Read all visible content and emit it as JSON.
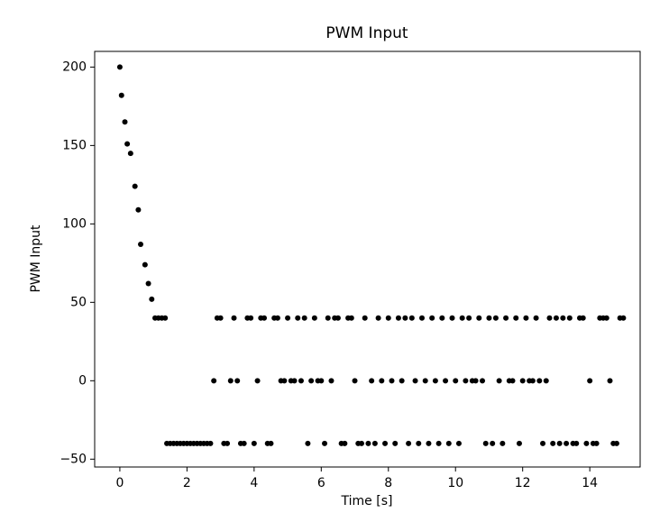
{
  "chart_data": {
    "type": "scatter",
    "title": "PWM Input",
    "x_label": "Time [s]",
    "y_label": "PWM Input",
    "series": [
      {
        "color": "#000000",
        "x": [
          0,
          0.05,
          0.15,
          0.22,
          0.32,
          0.45,
          0.55,
          0.62,
          0.75,
          0.85,
          0.95,
          1.05,
          1.15,
          1.25,
          1.35,
          1.4,
          1.5,
          1.6,
          1.7,
          1.8,
          1.9,
          2.0,
          2.1,
          2.2,
          2.3,
          2.4,
          2.5,
          2.6,
          2.7,
          2.8,
          2.9,
          3.0,
          3.1,
          3.2,
          3.3,
          3.4,
          3.5,
          3.6,
          3.7,
          3.8,
          3.9,
          4.0,
          4.1,
          4.2,
          4.3,
          4.4,
          4.5,
          4.6,
          4.7,
          4.8,
          4.9,
          5.0,
          5.1,
          5.2,
          5.3,
          5.4,
          5.5,
          5.6,
          5.7,
          5.8,
          5.9,
          6.0,
          6.1,
          6.2,
          6.3,
          6.4,
          6.5,
          6.6,
          6.7,
          6.8,
          6.9,
          7.0,
          7.1,
          7.2,
          7.3,
          7.4,
          7.5,
          7.6,
          7.7,
          7.8,
          7.9,
          8.0,
          8.1,
          8.2,
          8.3,
          8.4,
          8.5,
          8.6,
          8.7,
          8.8,
          8.9,
          9.0,
          9.1,
          9.2,
          9.3,
          9.4,
          9.5,
          9.6,
          9.7,
          9.8,
          9.9,
          10.0,
          10.1,
          10.2,
          10.3,
          10.4,
          10.5,
          10.6,
          10.7,
          10.8,
          10.9,
          11.0,
          11.1,
          11.2,
          11.3,
          11.4,
          11.5,
          11.6,
          11.7,
          11.8,
          11.9,
          12.0,
          12.1,
          12.2,
          12.3,
          12.4,
          12.5,
          12.6,
          12.7,
          12.8,
          12.9,
          13.0,
          13.1,
          13.2,
          13.3,
          13.4,
          13.5,
          13.6,
          13.7,
          13.8,
          13.9,
          14.0,
          14.1,
          14.2,
          14.3,
          14.4,
          14.5,
          14.6,
          14.7,
          14.8,
          14.9,
          15.0
        ],
        "values": [
          200,
          182,
          165,
          151,
          145,
          124,
          109,
          87,
          74,
          62,
          52,
          40,
          40,
          40,
          40,
          -40,
          -40,
          -40,
          -40,
          -40,
          -40,
          -40,
          -40,
          -40,
          -40,
          -40,
          -40,
          -40,
          -40,
          0,
          40,
          40,
          -40,
          -40,
          0,
          40,
          0,
          -40,
          -40,
          40,
          40,
          -40,
          0,
          40,
          40,
          -40,
          -40,
          40,
          40,
          0,
          0,
          40,
          0,
          0,
          40,
          0,
          40,
          -40,
          0,
          40,
          0,
          0,
          -40,
          40,
          0,
          40,
          40,
          -40,
          -40,
          40,
          40,
          0,
          -40,
          -40,
          40,
          -40,
          0,
          -40,
          40,
          0,
          -40,
          40,
          0,
          -40,
          40,
          0,
          40,
          -40,
          40,
          0,
          -40,
          40,
          0,
          -40,
          40,
          0,
          -40,
          40,
          0,
          -40,
          40,
          0,
          -40,
          40,
          0,
          40,
          0,
          0,
          40,
          0,
          -40,
          40,
          -40,
          40,
          0,
          -40,
          40,
          0,
          0,
          40,
          -40,
          0,
          40,
          0,
          0,
          40,
          0,
          -40,
          0,
          40,
          -40,
          40,
          -40,
          40,
          -40,
          40,
          -40,
          -40,
          40,
          40,
          -40,
          0,
          -40,
          -40,
          40,
          40,
          40,
          0,
          -40,
          -40,
          40,
          40
        ]
      }
    ],
    "xlim": [
      -0.75,
      15.5
    ],
    "ylim": [
      -55,
      210
    ],
    "xticks": [
      0,
      2,
      4,
      6,
      8,
      10,
      12,
      14
    ],
    "yticks": [
      {
        "value": -50,
        "label": "−50"
      },
      0,
      50,
      100,
      150,
      200
    ]
  }
}
